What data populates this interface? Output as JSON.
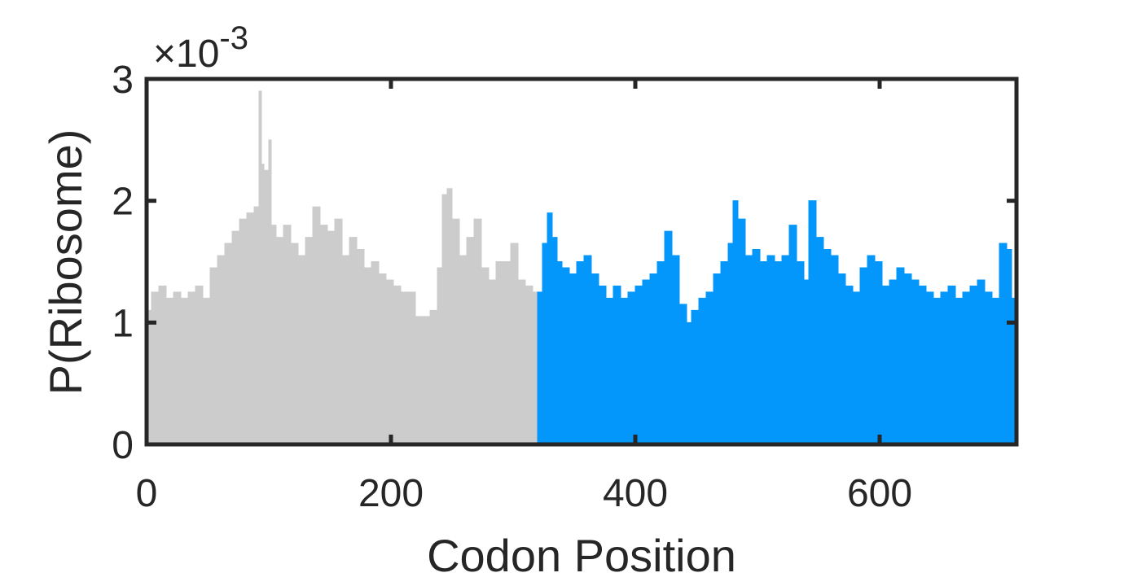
{
  "chart_data": {
    "type": "area",
    "xlabel": "Codon Position",
    "ylabel": "P(Ribosome)",
    "y_multiplier": "×10",
    "y_multiplier_exponent": "-3",
    "xlim": [
      0,
      712
    ],
    "ylim": [
      0,
      3
    ],
    "grid": false,
    "x_ticks": [
      {
        "value": 0,
        "label": "0"
      },
      {
        "value": 200,
        "label": "200"
      },
      {
        "value": 400,
        "label": "400"
      },
      {
        "value": 600,
        "label": "600"
      }
    ],
    "y_ticks": [
      {
        "value": 0,
        "label": "0"
      },
      {
        "value": 1,
        "label": "1"
      },
      {
        "value": 2,
        "label": "2"
      },
      {
        "value": 3,
        "label": "3"
      }
    ],
    "series": [
      {
        "color": "#cccccc",
        "x": [
          0,
          4,
          10,
          16,
          22,
          28,
          34,
          40,
          46,
          52,
          58,
          64,
          70,
          76,
          82,
          88,
          92,
          94,
          96,
          100,
          102,
          106,
          112,
          118,
          124,
          130,
          136,
          142,
          148,
          154,
          160,
          166,
          172,
          178,
          184,
          190,
          196,
          202,
          208,
          214,
          220,
          226,
          232,
          238,
          242,
          246,
          250,
          256,
          262,
          268,
          274,
          280,
          286,
          292,
          298,
          304,
          310,
          316,
          320
        ],
        "values": [
          1.1,
          1.25,
          1.3,
          1.2,
          1.25,
          1.2,
          1.25,
          1.3,
          1.2,
          1.45,
          1.55,
          1.65,
          1.75,
          1.85,
          1.9,
          1.95,
          2.9,
          2.3,
          2.25,
          2.5,
          1.8,
          1.7,
          1.8,
          1.65,
          1.55,
          1.7,
          1.95,
          1.8,
          1.75,
          1.85,
          1.55,
          1.7,
          1.6,
          1.45,
          1.5,
          1.4,
          1.35,
          1.3,
          1.25,
          1.25,
          1.05,
          1.05,
          1.1,
          1.45,
          2.05,
          2.1,
          1.85,
          1.55,
          1.7,
          1.85,
          1.45,
          1.35,
          1.5,
          1.5,
          1.65,
          1.35,
          1.3,
          1.25,
          1.2
        ]
      },
      {
        "color": "#0497fb",
        "x": [
          320,
          324,
          328,
          332,
          336,
          340,
          346,
          352,
          358,
          364,
          370,
          376,
          382,
          388,
          394,
          400,
          406,
          412,
          418,
          424,
          430,
          436,
          442,
          446,
          452,
          458,
          464,
          470,
          476,
          480,
          484,
          490,
          496,
          502,
          508,
          514,
          520,
          526,
          532,
          538,
          542,
          548,
          554,
          560,
          566,
          572,
          578,
          584,
          590,
          596,
          602,
          608,
          614,
          620,
          626,
          632,
          638,
          644,
          650,
          656,
          662,
          668,
          674,
          680,
          686,
          692,
          698,
          704,
          708,
          712
        ],
        "values": [
          1.25,
          1.65,
          1.9,
          1.7,
          1.5,
          1.45,
          1.4,
          1.5,
          1.55,
          1.4,
          1.3,
          1.2,
          1.3,
          1.2,
          1.25,
          1.3,
          1.35,
          1.4,
          1.5,
          1.75,
          1.55,
          1.15,
          1.0,
          1.1,
          1.2,
          1.25,
          1.4,
          1.5,
          1.65,
          2.0,
          1.85,
          1.55,
          1.6,
          1.5,
          1.55,
          1.5,
          1.55,
          1.8,
          1.5,
          1.35,
          2.0,
          1.7,
          1.6,
          1.55,
          1.4,
          1.3,
          1.25,
          1.45,
          1.55,
          1.5,
          1.3,
          1.35,
          1.45,
          1.4,
          1.35,
          1.3,
          1.25,
          1.2,
          1.25,
          1.3,
          1.2,
          1.25,
          1.3,
          1.35,
          1.25,
          1.2,
          1.65,
          1.6,
          1.2,
          1.7
        ]
      }
    ]
  }
}
